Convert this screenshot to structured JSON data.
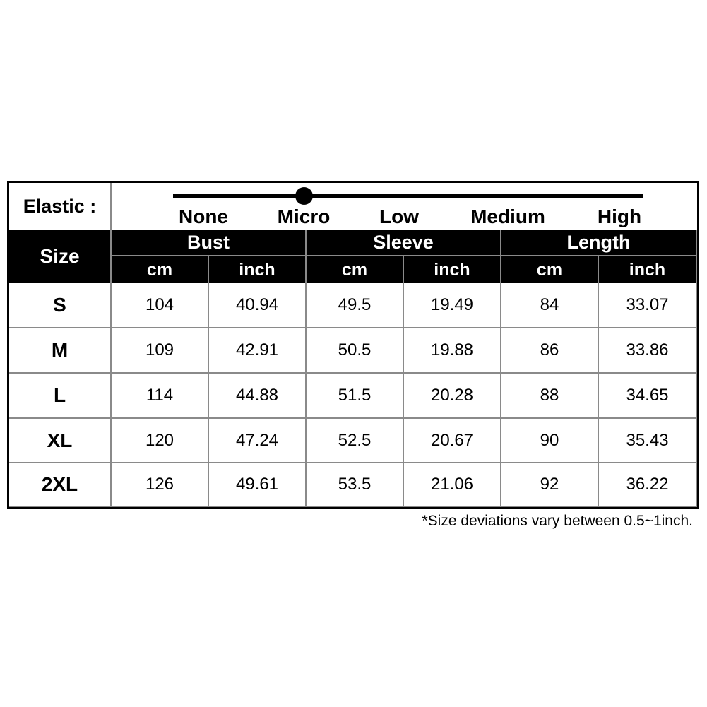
{
  "elastic": {
    "label": "Elastic :",
    "levels": [
      "None",
      "Micro",
      "Low",
      "Medium",
      "High"
    ],
    "selected": "Micro"
  },
  "header": {
    "size": "Size",
    "groups": [
      "Bust",
      "Sleeve",
      "Length"
    ],
    "units": [
      "cm",
      "inch",
      "cm",
      "inch",
      "cm",
      "inch"
    ]
  },
  "rows": [
    [
      "S",
      "104",
      "40.94",
      "49.5",
      "19.49",
      "84",
      "33.07"
    ],
    [
      "M",
      "109",
      "42.91",
      "50.5",
      "19.88",
      "86",
      "33.86"
    ],
    [
      "L",
      "114",
      "44.88",
      "51.5",
      "20.28",
      "88",
      "34.65"
    ],
    [
      "XL",
      "120",
      "47.24",
      "52.5",
      "20.67",
      "90",
      "35.43"
    ],
    [
      "2XL",
      "126",
      "49.61",
      "53.5",
      "21.06",
      "92",
      "36.22"
    ]
  ],
  "note": "*Size deviations vary between 0.5~1inch."
}
